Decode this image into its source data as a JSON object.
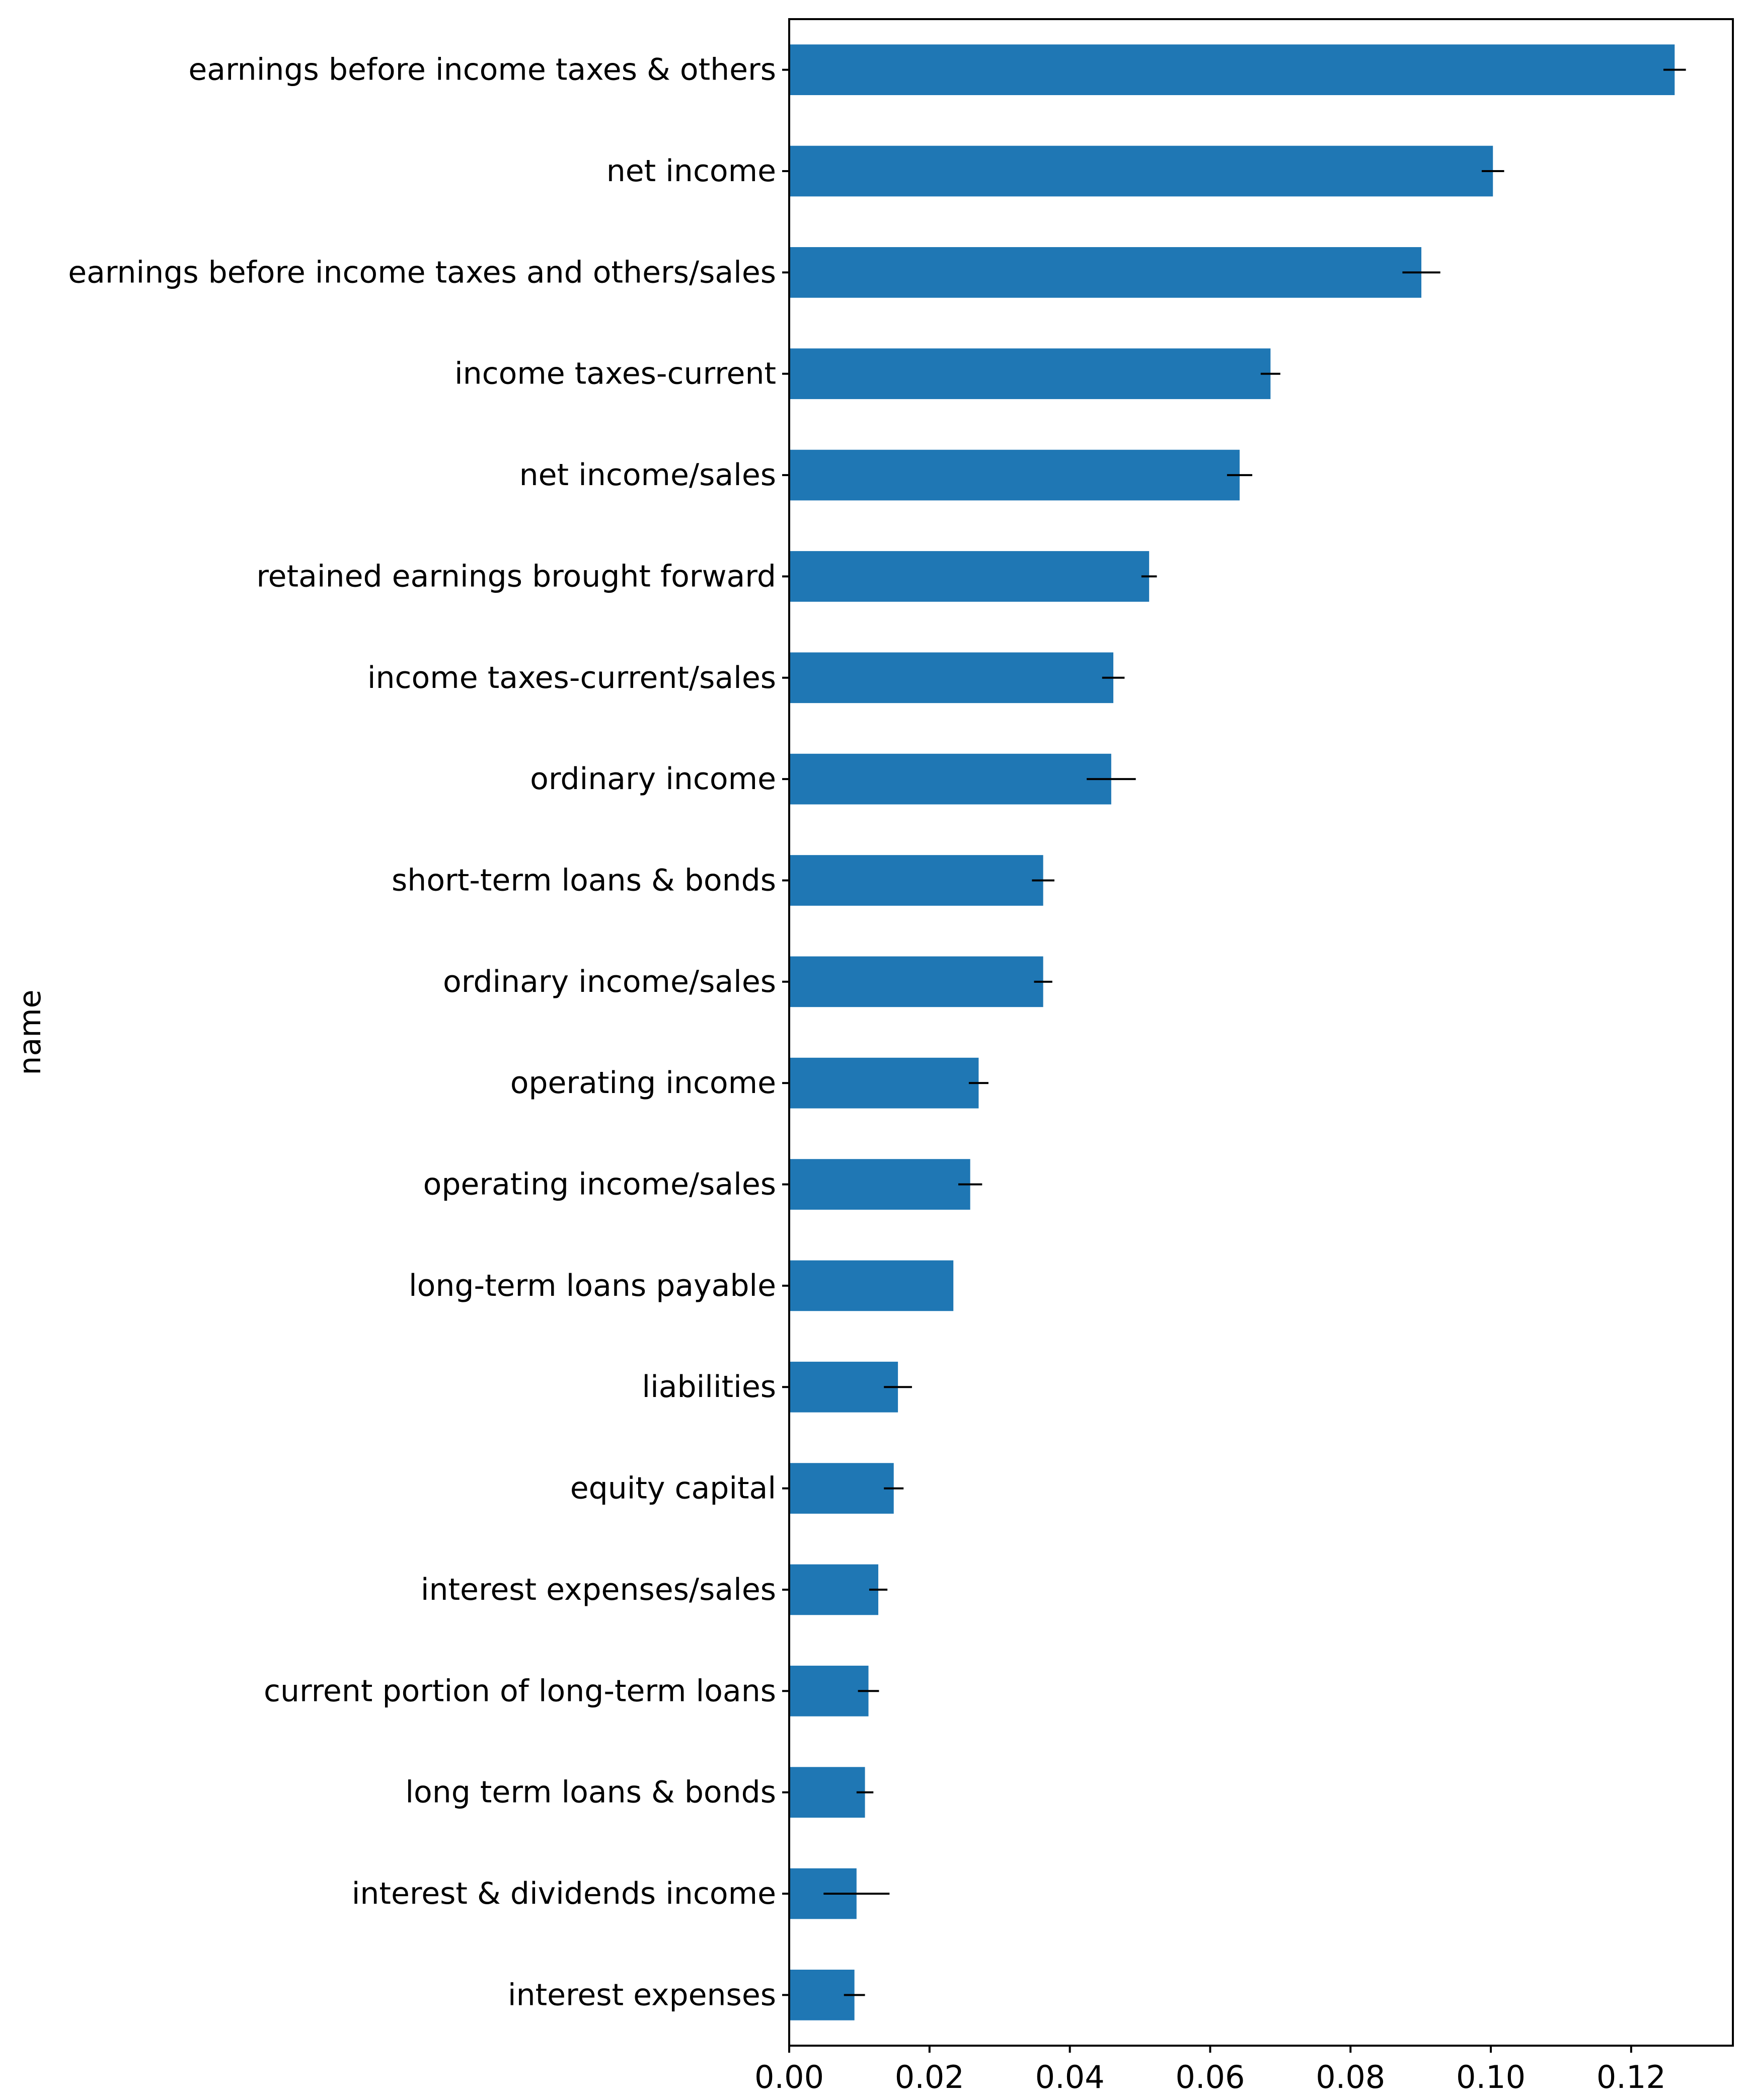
{
  "chart_data": {
    "type": "bar",
    "orientation": "horizontal",
    "title": "",
    "xlabel": "",
    "ylabel": "name",
    "xlim": [
      0,
      0.1345
    ],
    "xticks": [
      "0.00",
      "0.02",
      "0.04",
      "0.06",
      "0.08",
      "0.10",
      "0.12"
    ],
    "grid": false,
    "bar_color": "#1f77b4",
    "error_color": "#000000",
    "categories": [
      "earnings before income taxes & others",
      "net income",
      "earnings before income taxes and others/sales",
      "income taxes-current",
      "net income/sales",
      "retained earnings brought forward",
      "income taxes-current/sales",
      "ordinary income",
      "short-term loans & bonds",
      "ordinary income/sales",
      "operating income",
      "operating income/sales",
      "long-term loans payable",
      "liabilities",
      "equity capital",
      "interest expenses/sales",
      "current portion of long-term loans",
      "long term loans & bonds",
      "interest & dividends income",
      "interest expenses"
    ],
    "values": [
      0.1262,
      0.1003,
      0.0901,
      0.0686,
      0.0642,
      0.0513,
      0.0462,
      0.0459,
      0.0362,
      0.0362,
      0.027,
      0.0258,
      0.0234,
      0.0155,
      0.0149,
      0.0127,
      0.0113,
      0.0108,
      0.0096,
      0.0093
    ],
    "errors": [
      0.0016,
      0.0016,
      0.0027,
      0.0014,
      0.0018,
      0.0011,
      0.0016,
      0.0035,
      0.0016,
      0.0013,
      0.0014,
      0.0017,
      0.0,
      0.002,
      0.0014,
      0.0013,
      0.0015,
      0.0012,
      0.0047,
      0.0015
    ]
  }
}
